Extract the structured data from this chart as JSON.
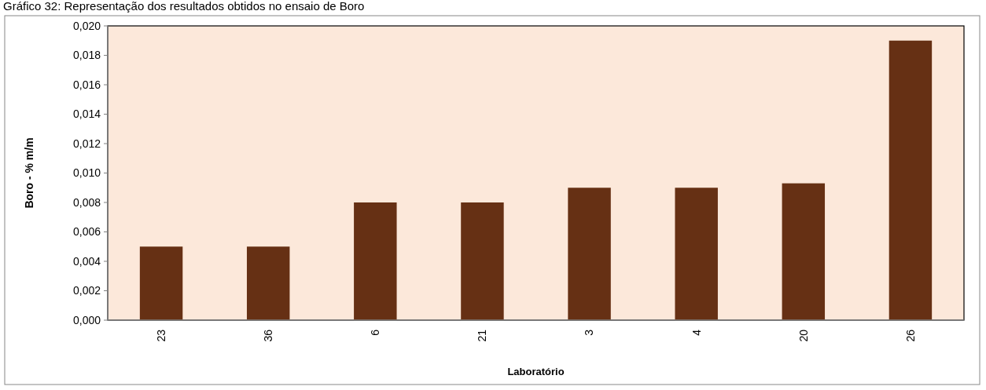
{
  "chart_data": {
    "type": "bar",
    "title": "Gráfico 32: Representação dos resultados obtidos no ensaio de Boro",
    "xlabel": "Laboratório",
    "ylabel": "Boro - % m/m",
    "categories": [
      "23",
      "36",
      "6",
      "21",
      "3",
      "4",
      "20",
      "26"
    ],
    "values": [
      0.005,
      0.005,
      0.008,
      0.008,
      0.009,
      0.009,
      0.0093,
      0.019
    ],
    "color": "#663014",
    "ylim": [
      0,
      0.02
    ],
    "yticks": [
      {
        "value": 0,
        "label": "0,000"
      },
      {
        "value": 0.002,
        "label": "0,002"
      },
      {
        "value": 0.004,
        "label": "0,004"
      },
      {
        "value": 0.006,
        "label": "0,006"
      },
      {
        "value": 0.008,
        "label": "0,008"
      },
      {
        "value": 0.01,
        "label": "0,010"
      },
      {
        "value": 0.012,
        "label": "0,012"
      },
      {
        "value": 0.014,
        "label": "0,014"
      },
      {
        "value": 0.016,
        "label": "0,016"
      },
      {
        "value": 0.018,
        "label": "0,018"
      },
      {
        "value": 0.02,
        "label": "0,020"
      }
    ],
    "grid": false
  }
}
